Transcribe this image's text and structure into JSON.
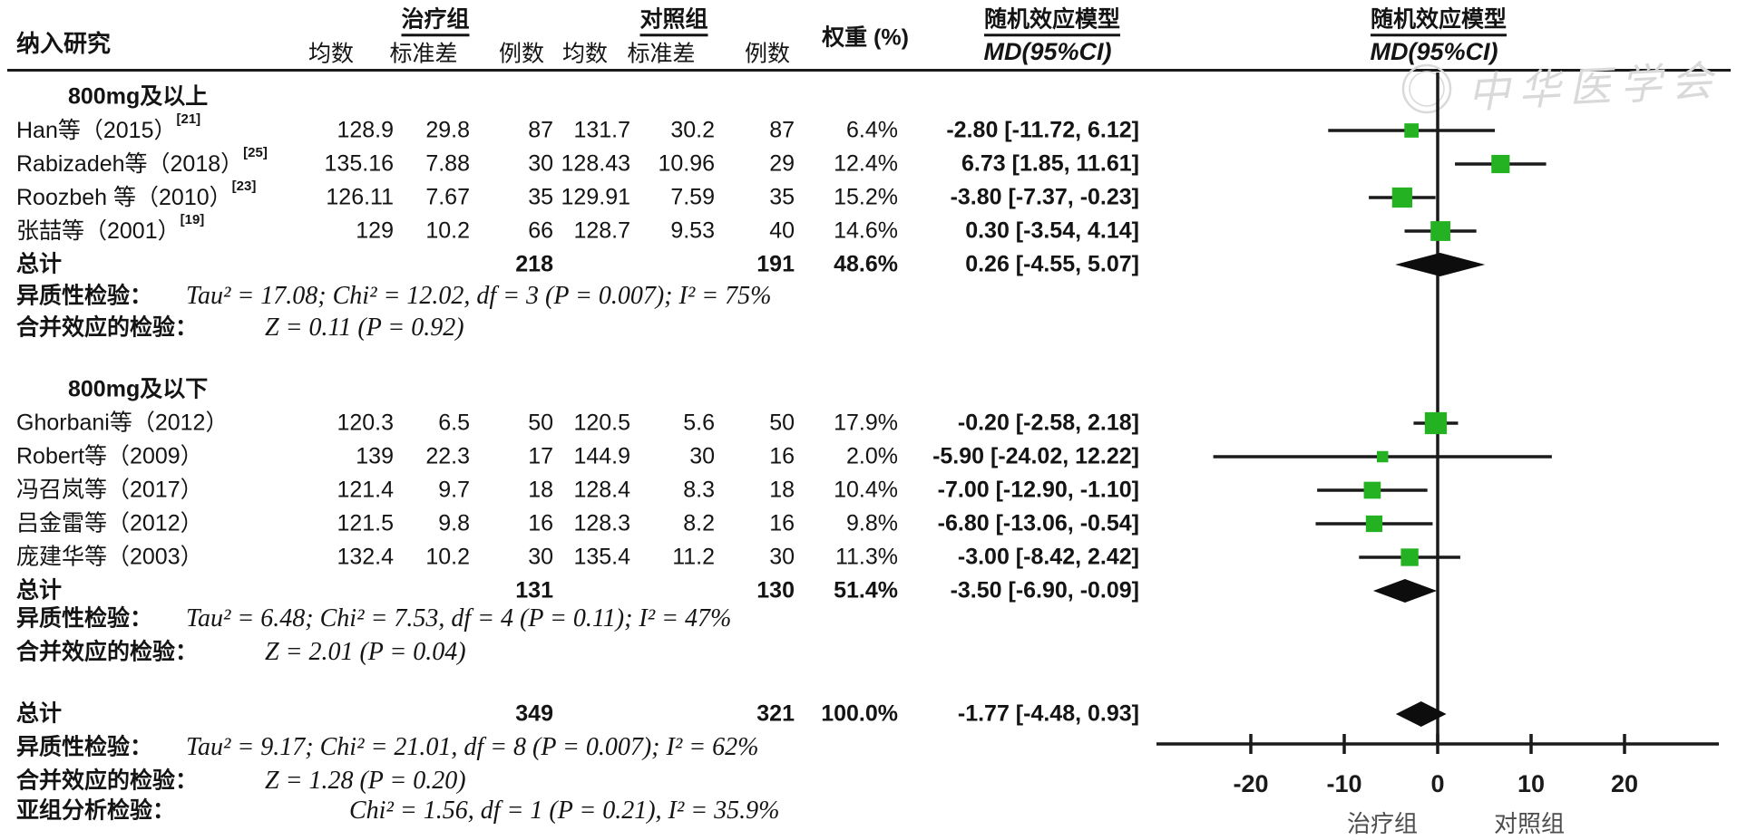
{
  "watermark": {
    "text": "中华医学会"
  },
  "chart_data": {
    "type": "forest",
    "model": "随机效应模型",
    "effect_measure": "MD(95%CI)",
    "header": {
      "study": "纳入研究",
      "treat_group": "治疗组",
      "control_group": "对照组",
      "mean": "均数",
      "sd": "标准差",
      "n": "例数",
      "weight": "权重 (%)",
      "model": "随机效应模型",
      "effect": "MD(95%CI)"
    },
    "stat_labels": {
      "heterogeneity": "异质性检验：",
      "overall_effect": "合并效应的检验：",
      "subgroup_test": "亚组分析检验：",
      "total": "总计"
    },
    "groups": [
      {
        "label": "800mg及以上",
        "studies": [
          {
            "name": "Han等（2015）",
            "ref": "[21]",
            "t_mean": "128.9",
            "t_sd": "29.8",
            "t_n": "87",
            "c_mean": "131.7",
            "c_sd": "30.2",
            "c_n": "87",
            "weight": "6.4%",
            "md_text": "-2.80 [-11.72, 6.12]",
            "md": -2.8,
            "lo": -11.72,
            "hi": 6.12
          },
          {
            "name": "Rabizadeh等（2018）",
            "ref": "[25]",
            "t_mean": "135.16",
            "t_sd": "7.88",
            "t_n": "30",
            "c_mean": "128.43",
            "c_sd": "10.96",
            "c_n": "29",
            "weight": "12.4%",
            "md_text": "6.73 [1.85, 11.61]",
            "md": 6.73,
            "lo": 1.85,
            "hi": 11.61
          },
          {
            "name": "Roozbeh 等（2010）",
            "ref": "[23]",
            "t_mean": "126.11",
            "t_sd": "7.67",
            "t_n": "35",
            "c_mean": "129.91",
            "c_sd": "7.59",
            "c_n": "35",
            "weight": "15.2%",
            "md_text": "-3.80 [-7.37, -0.23]",
            "md": -3.8,
            "lo": -7.37,
            "hi": -0.23
          },
          {
            "name": "张喆等（2001）",
            "ref": "[19]",
            "t_mean": "129",
            "t_sd": "10.2",
            "t_n": "66",
            "c_mean": "128.7",
            "c_sd": "9.53",
            "c_n": "40",
            "weight": "14.6%",
            "md_text": "0.30 [-3.54, 4.14]",
            "md": 0.3,
            "lo": -3.54,
            "hi": 4.14
          }
        ],
        "subtotal": {
          "label": "总计",
          "t_n": "218",
          "c_n": "191",
          "weight": "48.6%",
          "md_text": "0.26 [-4.55, 5.07]",
          "md": 0.26,
          "lo": -4.55,
          "hi": 5.07
        },
        "heterogeneity": "Tau² = 17.08; Chi² = 12.02, df = 3 (P = 0.007); I² = 75%",
        "overall_effect": "Z = 0.11 (P = 0.92)"
      },
      {
        "label": "800mg及以下",
        "studies": [
          {
            "name": "Ghorbani等（2012）",
            "ref": "",
            "t_mean": "120.3",
            "t_sd": "6.5",
            "t_n": "50",
            "c_mean": "120.5",
            "c_sd": "5.6",
            "c_n": "50",
            "weight": "17.9%",
            "md_text": "-0.20 [-2.58, 2.18]",
            "md": -0.2,
            "lo": -2.58,
            "hi": 2.18
          },
          {
            "name": "Robert等（2009）",
            "ref": "",
            "t_mean": "139",
            "t_sd": "22.3",
            "t_n": "17",
            "c_mean": "144.9",
            "c_sd": "30",
            "c_n": "16",
            "weight": "2.0%",
            "md_text": "-5.90 [-24.02, 12.22]",
            "md": -5.9,
            "lo": -24.02,
            "hi": 12.22
          },
          {
            "name": "冯召岚等（2017）",
            "ref": "",
            "t_mean": "121.4",
            "t_sd": "9.7",
            "t_n": "18",
            "c_mean": "128.4",
            "c_sd": "8.3",
            "c_n": "18",
            "weight": "10.4%",
            "md_text": "-7.00 [-12.90, -1.10]",
            "md": -7.0,
            "lo": -12.9,
            "hi": -1.1
          },
          {
            "name": "吕金雷等（2012）",
            "ref": "",
            "t_mean": "121.5",
            "t_sd": "9.8",
            "t_n": "16",
            "c_mean": "128.3",
            "c_sd": "8.2",
            "c_n": "16",
            "weight": "9.8%",
            "md_text": "-6.80 [-13.06, -0.54]",
            "md": -6.8,
            "lo": -13.06,
            "hi": -0.54
          },
          {
            "name": "庞建华等（2003）",
            "ref": "",
            "t_mean": "132.4",
            "t_sd": "10.2",
            "t_n": "30",
            "c_mean": "135.4",
            "c_sd": "11.2",
            "c_n": "30",
            "weight": "11.3%",
            "md_text": "-3.00 [-8.42, 2.42]",
            "md": -3.0,
            "lo": -8.42,
            "hi": 2.42
          }
        ],
        "subtotal": {
          "label": "总计",
          "t_n": "131",
          "c_n": "130",
          "weight": "51.4%",
          "md_text": "-3.50 [-6.90, -0.09]",
          "md": -3.5,
          "lo": -6.9,
          "hi": -0.09
        },
        "heterogeneity": "Tau² = 6.48; Chi² = 7.53, df = 4 (P = 0.11); I² = 47%",
        "overall_effect": "Z = 2.01 (P = 0.04)"
      }
    ],
    "total": {
      "label": "总计",
      "t_n": "349",
      "c_n": "321",
      "weight": "100.0%",
      "md_text": "-1.77 [-4.48, 0.93]",
      "md": -1.77,
      "lo": -4.48,
      "hi": 0.93,
      "heterogeneity": "Tau² = 9.17; Chi² = 21.01, df = 8 (P = 0.007); I² = 62%",
      "overall_effect": "Z = 1.28 (P = 0.20)",
      "subgroup_test": "Chi² = 1.56, df = 1 (P = 0.21), I² = 35.9%"
    },
    "axis": {
      "ticks": [
        -20,
        -10,
        0,
        10,
        20
      ],
      "range": [
        -30,
        30
      ],
      "left_label": "治疗组",
      "right_label": "对照组"
    },
    "colors": {
      "marker_green": "#25b222",
      "line_black": "#1a1a1a",
      "diamond_black": "#0d0d0d",
      "watermark_gray": "#d9d9d9"
    }
  }
}
